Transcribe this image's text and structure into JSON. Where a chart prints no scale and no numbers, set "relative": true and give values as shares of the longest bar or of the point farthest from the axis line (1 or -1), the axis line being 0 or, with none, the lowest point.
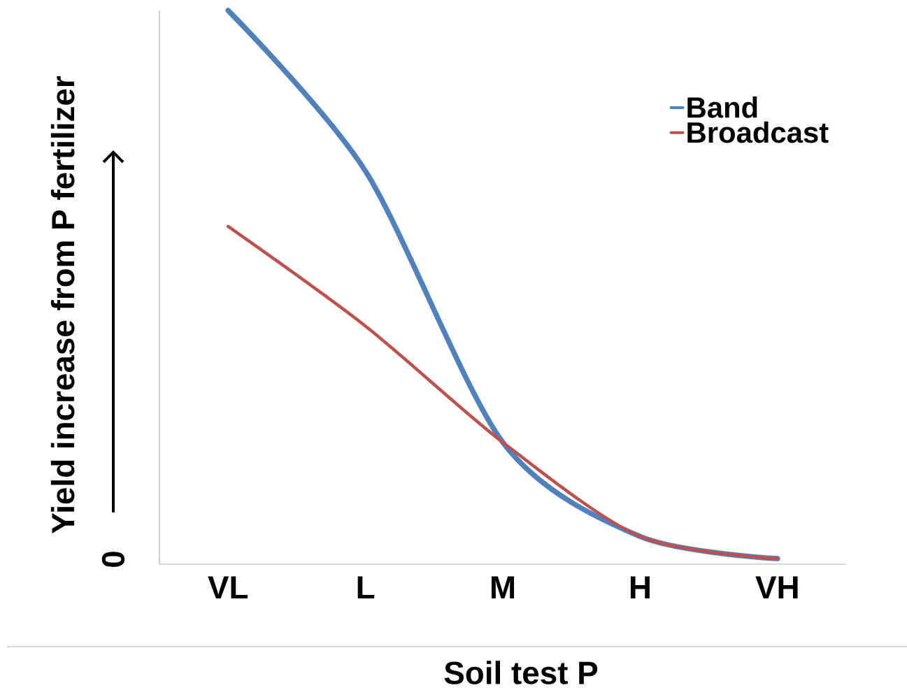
{
  "chart_data": {
    "type": "line",
    "relative": true,
    "xlabel": "Soil test P",
    "ylabel": "Yield increase from P fertilizer",
    "categories": [
      "VL",
      "L",
      "M",
      "H",
      "VH"
    ],
    "series": [
      {
        "name": "Band",
        "color": "#4f81bd",
        "values": [
          1,
          0.71,
          0.22,
          0.05,
          0.01
        ]
      },
      {
        "name": "Broadcast",
        "color": "#c0504d",
        "values": [
          0.61,
          0.43,
          0.22,
          0.05,
          0.01
        ]
      }
    ],
    "annotations": [
      "0"
    ],
    "legend": "top right",
    "marker": "none",
    "line_style": "solid"
  }
}
